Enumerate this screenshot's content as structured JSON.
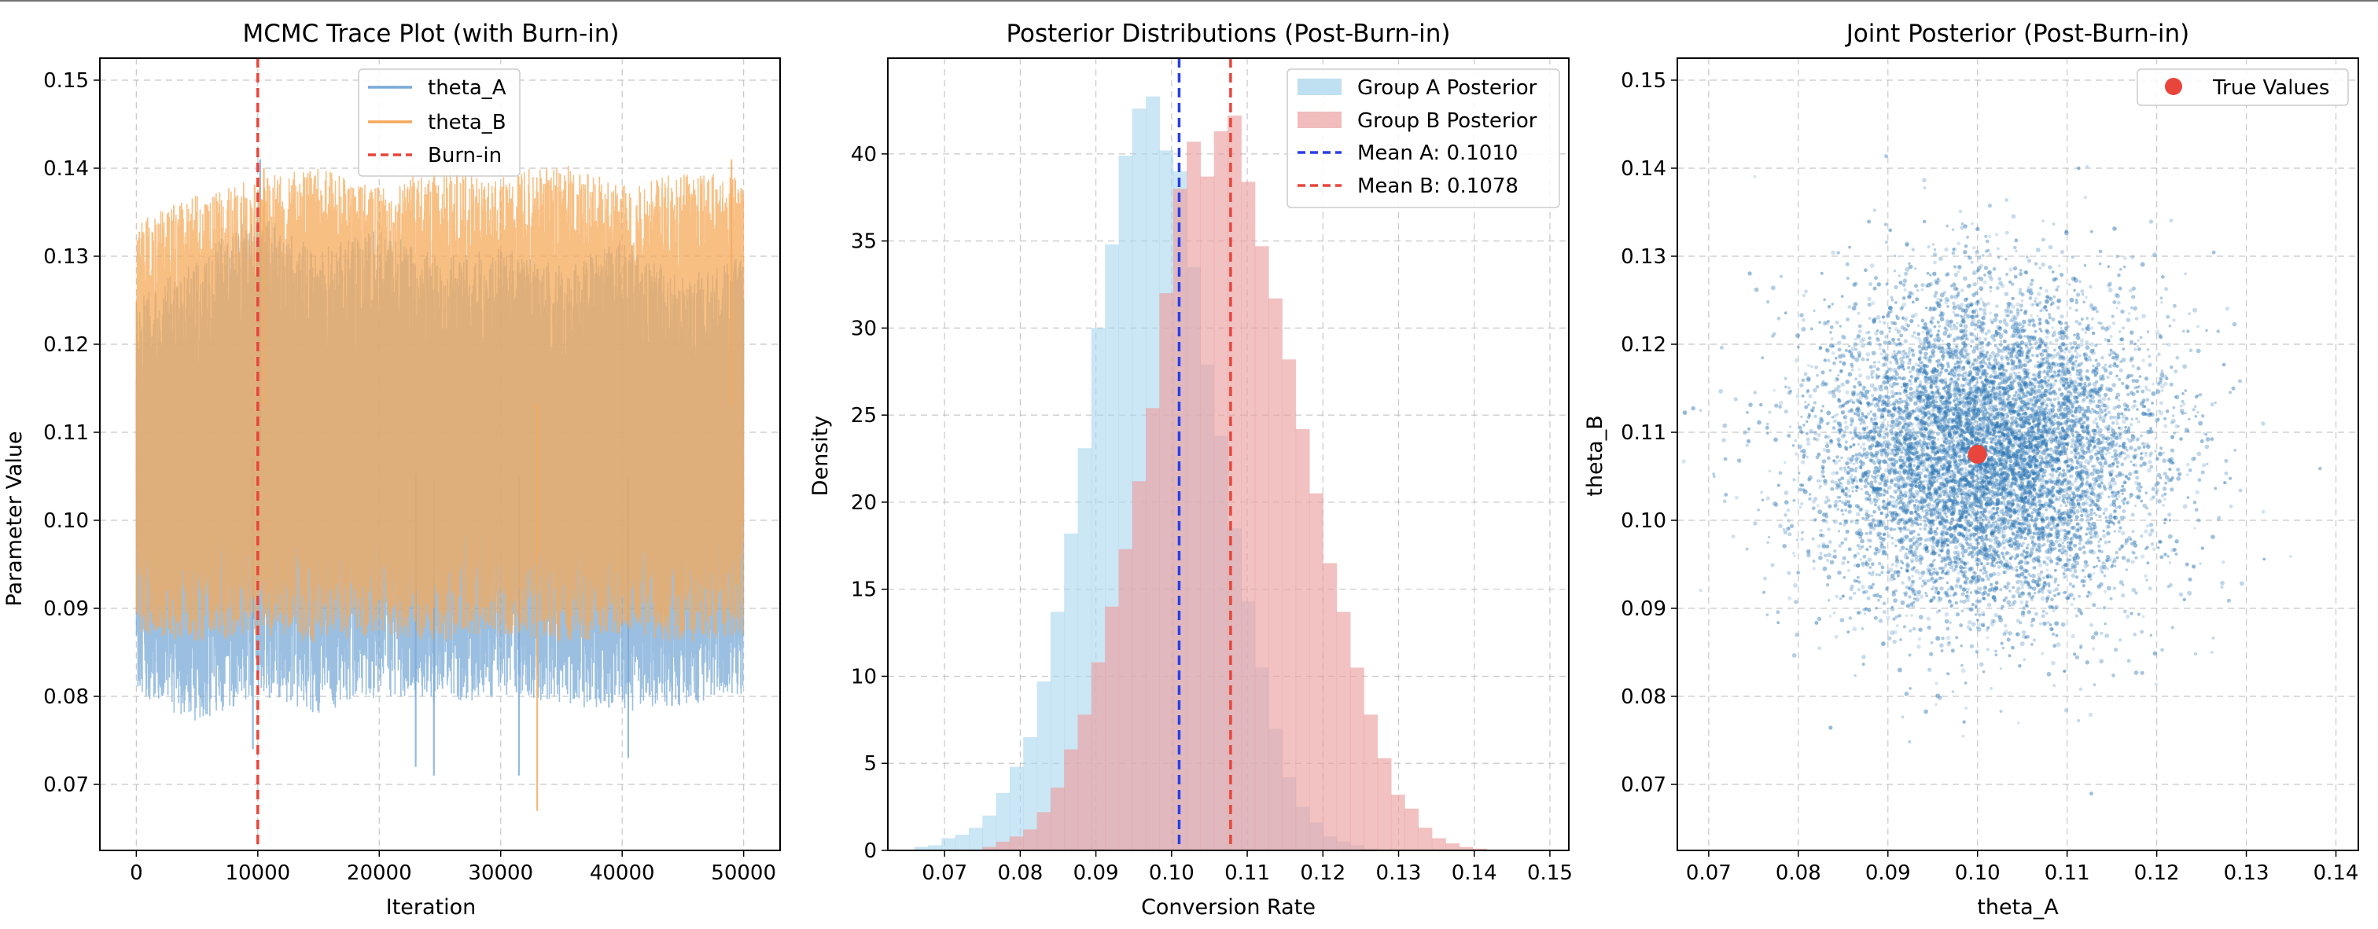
{
  "chart_data": [
    {
      "type": "line",
      "title": "MCMC Trace Plot (with Burn-in)",
      "xlabel": "Iteration",
      "ylabel": "Parameter Value",
      "xlim": [
        -3000,
        53000
      ],
      "ylim": [
        0.0625,
        0.1525
      ],
      "xticks": [
        0,
        10000,
        20000,
        30000,
        40000,
        50000
      ],
      "xtick_labels": [
        "0",
        "10000",
        "20000",
        "30000",
        "40000",
        "50000"
      ],
      "yticks": [
        0.07,
        0.08,
        0.09,
        0.1,
        0.11,
        0.12,
        0.13,
        0.14,
        0.15
      ],
      "ytick_labels": [
        "0.07",
        "0.08",
        "0.09",
        "0.10",
        "0.11",
        "0.12",
        "0.13",
        "0.14",
        "0.15"
      ],
      "grid": true,
      "legend_position": "top-center",
      "legend": [
        {
          "label": "theta_A",
          "style": "line",
          "color": "#7aa9d6"
        },
        {
          "label": "theta_B",
          "style": "line",
          "color": "#f5a95a"
        },
        {
          "label": "Burn-in",
          "style": "dashed",
          "color": "#e8453c"
        }
      ],
      "series": [
        {
          "name": "theta_A",
          "color": "#7aa9d6",
          "band_x": [
            0,
            5000,
            10000,
            15000,
            20000,
            25000,
            30000,
            35000,
            40000,
            45000,
            50000
          ],
          "band_low": [
            0.08,
            0.077,
            0.08,
            0.078,
            0.08,
            0.079,
            0.08,
            0.079,
            0.078,
            0.079,
            0.08
          ],
          "band_high": [
            0.125,
            0.13,
            0.135,
            0.131,
            0.133,
            0.13,
            0.131,
            0.129,
            0.132,
            0.128,
            0.13
          ],
          "extreme_points": [
            [
              10200,
              0.141
            ],
            [
              9600,
              0.074
            ],
            [
              23000,
              0.072
            ],
            [
              24500,
              0.071
            ],
            [
              31500,
              0.071
            ],
            [
              40500,
              0.073
            ]
          ]
        },
        {
          "name": "theta_B",
          "color": "#f5a95a",
          "band_x": [
            0,
            5000,
            10000,
            15000,
            20000,
            25000,
            30000,
            35000,
            40000,
            45000,
            50000
          ],
          "band_low": [
            0.087,
            0.086,
            0.087,
            0.086,
            0.087,
            0.086,
            0.087,
            0.086,
            0.087,
            0.086,
            0.087
          ],
          "band_high": [
            0.134,
            0.137,
            0.139,
            0.14,
            0.138,
            0.14,
            0.139,
            0.141,
            0.138,
            0.14,
            0.139
          ],
          "extreme_points": [
            [
              33000,
              0.067
            ],
            [
              10500,
              0.14
            ],
            [
              49000,
              0.141
            ]
          ]
        }
      ],
      "vline": {
        "x": 10000,
        "label": "Burn-in",
        "color": "#e8453c"
      }
    },
    {
      "type": "bar",
      "title": "Posterior Distributions (Post-Burn-in)",
      "xlabel": "Conversion Rate",
      "ylabel": "Density",
      "xlim": [
        0.0625,
        0.1525
      ],
      "ylim": [
        0,
        45.5
      ],
      "xticks": [
        0.07,
        0.08,
        0.09,
        0.1,
        0.11,
        0.12,
        0.13,
        0.14,
        0.15
      ],
      "xtick_labels": [
        "0.07",
        "0.08",
        "0.09",
        "0.10",
        "0.11",
        "0.12",
        "0.13",
        "0.14",
        "0.15"
      ],
      "yticks": [
        0,
        5,
        10,
        15,
        20,
        25,
        30,
        35,
        40
      ],
      "ytick_labels": [
        "0",
        "5",
        "10",
        "15",
        "20",
        "25",
        "30",
        "35",
        "40"
      ],
      "grid": true,
      "legend_position": "top-right",
      "legend": [
        {
          "label": "Group A Posterior",
          "style": "patch",
          "color": "#a9d5ec"
        },
        {
          "label": "Group B Posterior",
          "style": "patch",
          "color": "#eba0a0"
        },
        {
          "label": "Mean A: 0.1010",
          "style": "dashed",
          "color": "#2a3fe6"
        },
        {
          "label": "Mean B: 0.1078",
          "style": "dashed",
          "color": "#e8453c"
        }
      ],
      "bin_start": 0.066,
      "bin_width": 0.0018,
      "series": [
        {
          "name": "Group A Posterior",
          "color": "#a9d5ec",
          "values": [
            0.2,
            0.3,
            0.7,
            0.9,
            1.3,
            2.0,
            3.3,
            4.8,
            6.5,
            9.7,
            13.7,
            18.2,
            23.1,
            30.0,
            34.8,
            39.9,
            42.6,
            43.3,
            40.2,
            39.0,
            33.5,
            27.9,
            23.8,
            18.5,
            14.3,
            10.5,
            7.0,
            4.2,
            2.5,
            1.6,
            0.8,
            0.5,
            0.3,
            0.1,
            0,
            0,
            0,
            0,
            0,
            0,
            0,
            0
          ]
        },
        {
          "name": "Group B Posterior",
          "color": "#eba0a0",
          "values": [
            0,
            0,
            0,
            0,
            0,
            0.2,
            0.5,
            0.8,
            1.2,
            2.2,
            3.6,
            5.8,
            7.8,
            10.8,
            14.0,
            17.3,
            21.2,
            25.4,
            32.0,
            38.0,
            40.7,
            38.7,
            41.3,
            42.2,
            38.4,
            34.7,
            31.7,
            28.2,
            24.2,
            20.5,
            16.5,
            13.7,
            10.5,
            7.8,
            5.3,
            3.2,
            2.4,
            1.3,
            0.7,
            0.4,
            0.2,
            0.1
          ]
        }
      ],
      "vlines": [
        {
          "x": 0.101,
          "label": "Mean A: 0.1010",
          "color": "#2a3fe6"
        },
        {
          "x": 0.1078,
          "label": "Mean B: 0.1078",
          "color": "#e8453c"
        }
      ]
    },
    {
      "type": "scatter",
      "title": "Joint Posterior (Post-Burn-in)",
      "xlabel": "theta_A",
      "ylabel": "theta_B",
      "xlim": [
        0.0665,
        0.1425
      ],
      "ylim": [
        0.0625,
        0.1525
      ],
      "xticks": [
        0.07,
        0.08,
        0.09,
        0.1,
        0.11,
        0.12,
        0.13,
        0.14
      ],
      "xtick_labels": [
        "0.07",
        "0.08",
        "0.09",
        "0.10",
        "0.11",
        "0.12",
        "0.13",
        "0.14"
      ],
      "yticks": [
        0.07,
        0.08,
        0.09,
        0.1,
        0.11,
        0.12,
        0.13,
        0.14,
        0.15
      ],
      "ytick_labels": [
        "0.07",
        "0.08",
        "0.09",
        "0.10",
        "0.11",
        "0.12",
        "0.13",
        "0.14",
        "0.15"
      ],
      "grid": true,
      "legend_position": "top-right",
      "legend": [
        {
          "label": "True Values",
          "style": "marker",
          "color": "#e8453c"
        }
      ],
      "cloud": {
        "mean_x": 0.101,
        "mean_y": 0.1078,
        "sd_x": 0.0092,
        "sd_y": 0.0092,
        "color": "#2f78b5"
      },
      "true_point": {
        "x": 0.1,
        "y": 0.1075,
        "label": "True Values",
        "color": "#e8453c"
      }
    }
  ]
}
